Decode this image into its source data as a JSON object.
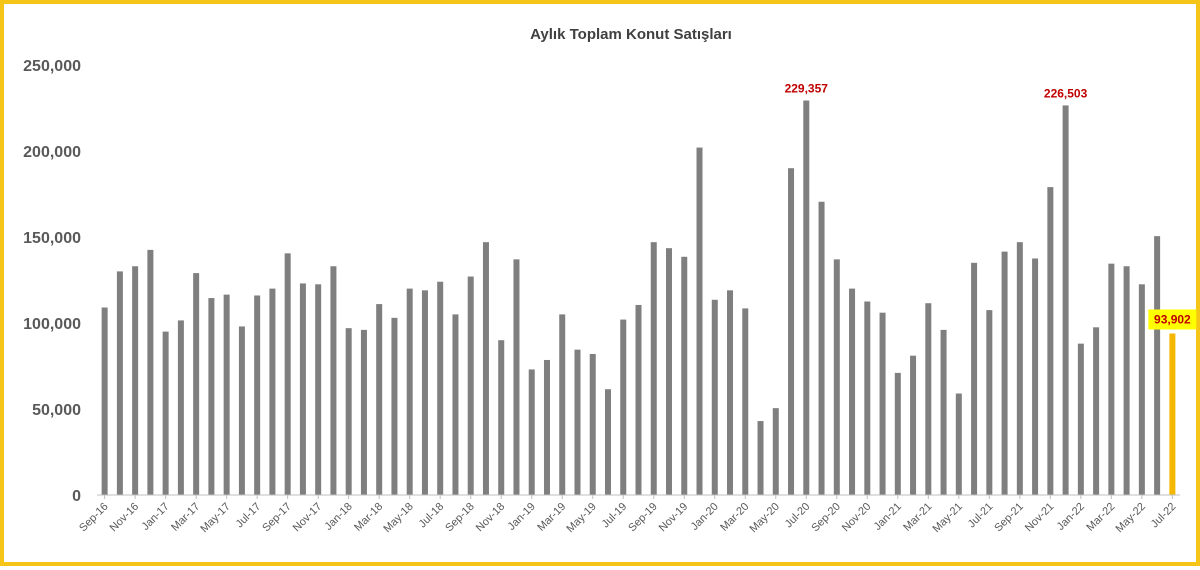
{
  "chart_data": {
    "type": "bar",
    "title": "Aylık Toplam Konut Satışları",
    "xlabel": "",
    "ylabel": "",
    "ylim": [
      0,
      250000
    ],
    "yticks": [
      0,
      50000,
      100000,
      150000,
      200000,
      250000
    ],
    "ytick_labels": [
      "0",
      "50,000",
      "100,000",
      "150,000",
      "200,000",
      "250,000"
    ],
    "grid": false,
    "legend": "none",
    "bar_color": "#7F7F7F",
    "highlight_color": "#F5B800",
    "label_highlight_bg": "#FFFF00",
    "peak_label_color": "#C00000",
    "frame_color": "#F5C518",
    "categories": [
      "Sep-16",
      "Oct-16",
      "Nov-16",
      "Dec-16",
      "Jan-17",
      "Feb-17",
      "Mar-17",
      "Apr-17",
      "May-17",
      "Jun-17",
      "Jul-17",
      "Aug-17",
      "Sep-17",
      "Oct-17",
      "Nov-17",
      "Dec-17",
      "Jan-18",
      "Feb-18",
      "Mar-18",
      "Apr-18",
      "May-18",
      "Jun-18",
      "Jul-18",
      "Aug-18",
      "Sep-18",
      "Oct-18",
      "Nov-18",
      "Dec-18",
      "Jan-19",
      "Feb-19",
      "Mar-19",
      "Apr-19",
      "May-19",
      "Jun-19",
      "Jul-19",
      "Aug-19",
      "Sep-19",
      "Oct-19",
      "Nov-19",
      "Dec-19",
      "Jan-20",
      "Feb-20",
      "Mar-20",
      "Apr-20",
      "May-20",
      "Jun-20",
      "Jul-20",
      "Aug-20",
      "Sep-20",
      "Oct-20",
      "Nov-20",
      "Dec-20",
      "Jan-21",
      "Feb-21",
      "Mar-21",
      "Apr-21",
      "May-21",
      "Jun-21",
      "Jul-21",
      "Aug-21",
      "Sep-21",
      "Oct-21",
      "Nov-21",
      "Dec-21",
      "Jan-22",
      "Feb-22",
      "Mar-22",
      "Apr-22",
      "May-22",
      "Jun-22",
      "Jul-22"
    ],
    "xtick_labels": [
      "Sep-16",
      "Nov-16",
      "Jan-17",
      "Mar-17",
      "May-17",
      "Jul-17",
      "Sep-17",
      "Nov-17",
      "Jan-18",
      "Mar-18",
      "May-18",
      "Jul-18",
      "Sep-18",
      "Nov-18",
      "Jan-19",
      "Mar-19",
      "May-19",
      "Jul-19",
      "Sep-19",
      "Nov-19",
      "Jan-20",
      "Mar-20",
      "May-20",
      "Jul-20",
      "Sep-20",
      "Nov-20",
      "Jan-21",
      "Mar-21",
      "May-21",
      "Jul-21",
      "Sep-21",
      "Nov-21",
      "Jan-22",
      "Mar-22",
      "May-22",
      "Jul-22"
    ],
    "values": [
      109000,
      130000,
      133000,
      142500,
      95000,
      101500,
      129000,
      114500,
      116500,
      98000,
      116000,
      120000,
      140500,
      123000,
      122500,
      133000,
      97000,
      96000,
      111000,
      103000,
      120000,
      119000,
      124000,
      105000,
      127000,
      147000,
      90000,
      137000,
      73000,
      78500,
      105000,
      84500,
      82000,
      61500,
      102000,
      110500,
      147000,
      143500,
      138500,
      202000,
      113500,
      119000,
      108500,
      43000,
      50500,
      190000,
      229357,
      170500,
      137000,
      120000,
      112500,
      106000,
      71000,
      81000,
      111500,
      96000,
      59000,
      135000,
      107500,
      141500,
      147000,
      137500,
      179000,
      226503,
      88000,
      97500,
      134500,
      133000,
      122500,
      150500,
      93902
    ],
    "data_labels": [
      {
        "index": 46,
        "text": "229,357"
      },
      {
        "index": 63,
        "text": "226,503"
      },
      {
        "index": 70,
        "text": "93,902"
      }
    ]
  }
}
